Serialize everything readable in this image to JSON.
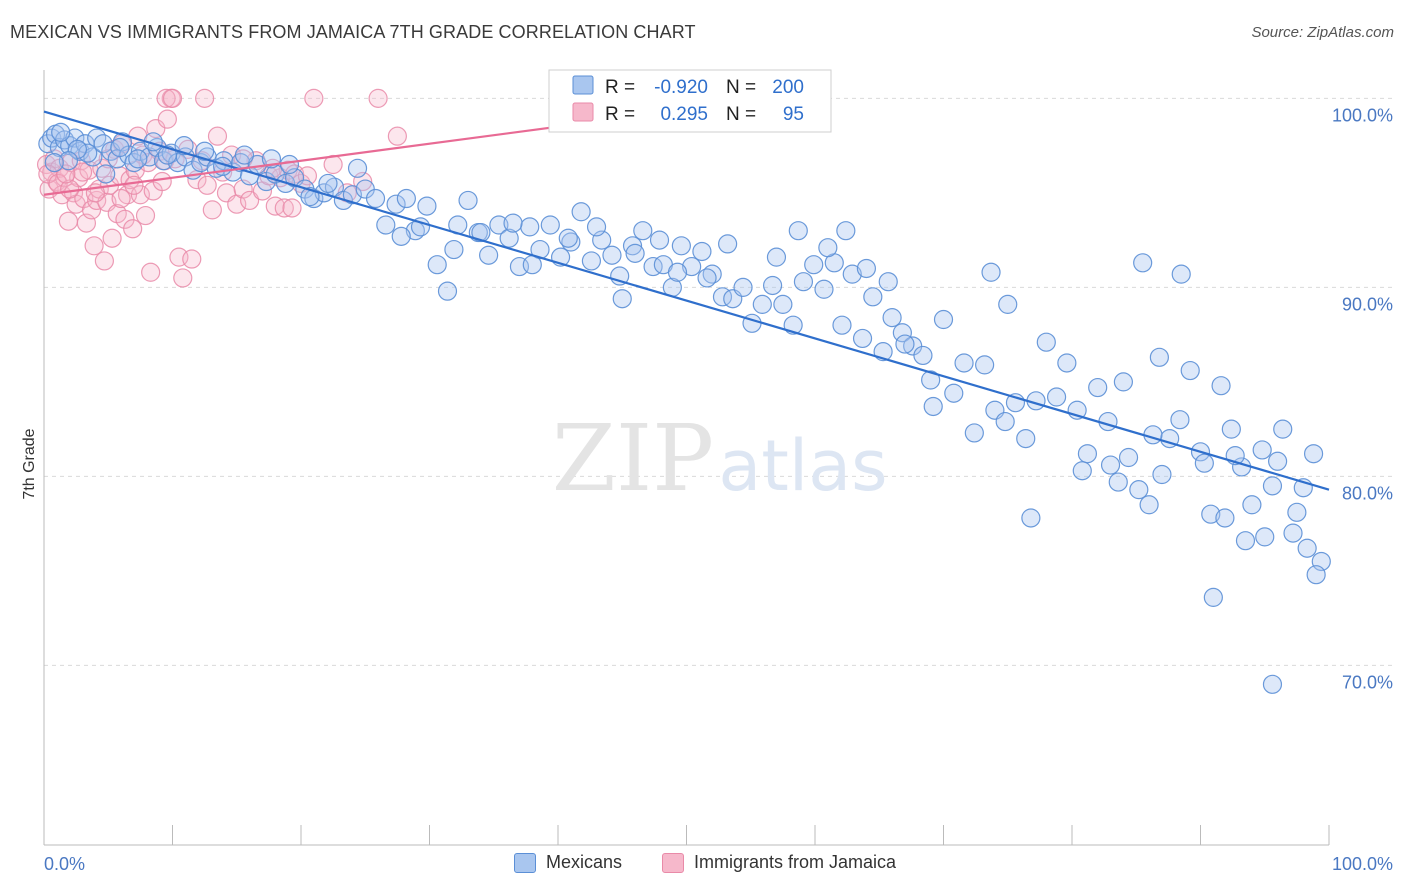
{
  "header": {
    "title": "MEXICAN VS IMMIGRANTS FROM JAMAICA 7TH GRADE CORRELATION CHART",
    "source": "Source: ZipAtlas.com"
  },
  "watermark": {
    "zip": "ZIP",
    "atlas": "atlas"
  },
  "colors": {
    "blue_fill": "#a9c6ef",
    "blue_stroke": "#5b8fd6",
    "blue_line": "#2f6fcc",
    "pink_fill": "#f6b8cb",
    "pink_stroke": "#e98aa8",
    "pink_line": "#e86a94",
    "axis_label": "#4a78c2",
    "grid": "#d9d9d9"
  },
  "legend_box": {
    "rows": [
      {
        "r_label": "R =",
        "r_value": "-0.920",
        "n_label": "N =",
        "n_value": "200"
      },
      {
        "r_label": "R =",
        "r_value": "0.295",
        "n_label": "N =",
        "n_value": "95"
      }
    ]
  },
  "bottom_legend": {
    "items": [
      "Mexicans",
      "Immigrants from Jamaica"
    ]
  },
  "chart_data": {
    "type": "scatter",
    "title": "MEXICAN VS IMMIGRANTS FROM JAMAICA 7TH GRADE CORRELATION CHART",
    "xlabel": "",
    "ylabel": "7th Grade",
    "xlim": [
      0,
      100
    ],
    "ylim": [
      60.5,
      101.5
    ],
    "x_tick_labels": [
      "0.0%",
      "100.0%"
    ],
    "y_ticks": [
      70,
      80,
      90,
      100
    ],
    "y_tick_labels": [
      "70.0%",
      "80.0%",
      "90.0%",
      "100.0%"
    ],
    "grid": "horizontal dashed",
    "legend": "top-center",
    "series": [
      {
        "name": "Mexicans",
        "color": "#5b8fd6",
        "r": -0.92,
        "n": 200,
        "trend": {
          "x": [
            0,
            100
          ],
          "y": [
            99.3,
            79.3
          ]
        },
        "points": [
          [
            0.3,
            97.6
          ],
          [
            0.6,
            97.9
          ],
          [
            0.9,
            98.1
          ],
          [
            1.2,
            97.4
          ],
          [
            1.6,
            97.8
          ],
          [
            2.0,
            97.5
          ],
          [
            2.4,
            97.9
          ],
          [
            2.8,
            97.2
          ],
          [
            3.2,
            97.6
          ],
          [
            3.8,
            96.9
          ],
          [
            4.1,
            97.9
          ],
          [
            4.6,
            97.6
          ],
          [
            5.2,
            97.2
          ],
          [
            5.7,
            96.8
          ],
          [
            6.1,
            97.7
          ],
          [
            6.6,
            97.0
          ],
          [
            7.0,
            96.6
          ],
          [
            7.5,
            97.2
          ],
          [
            8.2,
            96.9
          ],
          [
            8.8,
            97.4
          ],
          [
            9.3,
            96.7
          ],
          [
            9.9,
            97.1
          ],
          [
            10.4,
            96.6
          ],
          [
            11.0,
            96.9
          ],
          [
            11.6,
            96.2
          ],
          [
            12.2,
            96.6
          ],
          [
            12.7,
            96.9
          ],
          [
            13.4,
            96.3
          ],
          [
            14.0,
            96.7
          ],
          [
            14.7,
            96.1
          ],
          [
            15.3,
            96.6
          ],
          [
            16.0,
            95.9
          ],
          [
            16.6,
            96.5
          ],
          [
            17.3,
            95.6
          ],
          [
            18.0,
            96.0
          ],
          [
            18.8,
            95.5
          ],
          [
            19.5,
            95.8
          ],
          [
            20.3,
            95.2
          ],
          [
            21.0,
            94.7
          ],
          [
            21.8,
            95.0
          ],
          [
            22.6,
            95.3
          ],
          [
            23.3,
            94.6
          ],
          [
            24.0,
            94.9
          ],
          [
            25.0,
            95.2
          ],
          [
            25.8,
            94.7
          ],
          [
            26.6,
            93.3
          ],
          [
            27.4,
            94.4
          ],
          [
            28.2,
            94.7
          ],
          [
            28.9,
            93.0
          ],
          [
            29.8,
            94.3
          ],
          [
            30.6,
            91.2
          ],
          [
            31.4,
            89.8
          ],
          [
            32.2,
            93.3
          ],
          [
            33.0,
            94.6
          ],
          [
            33.8,
            92.9
          ],
          [
            34.6,
            91.7
          ],
          [
            35.4,
            93.3
          ],
          [
            36.2,
            92.6
          ],
          [
            37.0,
            91.1
          ],
          [
            37.8,
            93.2
          ],
          [
            38.6,
            92.0
          ],
          [
            39.4,
            93.3
          ],
          [
            40.2,
            91.6
          ],
          [
            41.0,
            92.4
          ],
          [
            41.8,
            94.0
          ],
          [
            42.6,
            91.4
          ],
          [
            43.4,
            92.5
          ],
          [
            44.2,
            91.7
          ],
          [
            45.0,
            89.4
          ],
          [
            45.8,
            92.2
          ],
          [
            46.6,
            93.0
          ],
          [
            47.4,
            91.1
          ],
          [
            48.2,
            91.2
          ],
          [
            48.9,
            90.0
          ],
          [
            49.6,
            92.2
          ],
          [
            50.4,
            91.1
          ],
          [
            51.2,
            91.9
          ],
          [
            52.0,
            90.7
          ],
          [
            52.8,
            89.5
          ],
          [
            53.6,
            89.4
          ],
          [
            54.4,
            90.0
          ],
          [
            55.1,
            88.1
          ],
          [
            55.9,
            89.1
          ],
          [
            56.7,
            90.1
          ],
          [
            57.5,
            89.1
          ],
          [
            58.3,
            88.0
          ],
          [
            59.1,
            90.3
          ],
          [
            59.9,
            91.2
          ],
          [
            60.7,
            89.9
          ],
          [
            61.5,
            91.3
          ],
          [
            62.1,
            88.0
          ],
          [
            62.9,
            90.7
          ],
          [
            63.7,
            87.3
          ],
          [
            64.5,
            89.5
          ],
          [
            65.3,
            86.6
          ],
          [
            66.0,
            88.4
          ],
          [
            66.8,
            87.6
          ],
          [
            67.6,
            86.9
          ],
          [
            68.4,
            86.4
          ],
          [
            69.2,
            83.7
          ],
          [
            70.0,
            88.3
          ],
          [
            70.8,
            84.4
          ],
          [
            71.6,
            86.0
          ],
          [
            72.4,
            82.3
          ],
          [
            73.2,
            85.9
          ],
          [
            74.0,
            83.5
          ],
          [
            74.8,
            82.9
          ],
          [
            75.6,
            83.9
          ],
          [
            76.4,
            82.0
          ],
          [
            77.2,
            84.0
          ],
          [
            78.0,
            87.1
          ],
          [
            78.8,
            84.2
          ],
          [
            79.6,
            86.0
          ],
          [
            80.4,
            83.5
          ],
          [
            81.2,
            81.2
          ],
          [
            82.0,
            84.7
          ],
          [
            82.8,
            82.9
          ],
          [
            83.6,
            79.7
          ],
          [
            84.4,
            81.0
          ],
          [
            85.2,
            79.3
          ],
          [
            86.0,
            78.5
          ],
          [
            86.8,
            86.3
          ],
          [
            87.6,
            82.0
          ],
          [
            88.4,
            83.0
          ],
          [
            89.2,
            85.6
          ],
          [
            90.0,
            81.3
          ],
          [
            90.8,
            78.0
          ],
          [
            91.6,
            84.8
          ],
          [
            92.4,
            82.5
          ],
          [
            93.2,
            80.5
          ],
          [
            94.0,
            78.5
          ],
          [
            94.8,
            81.4
          ],
          [
            95.6,
            79.5
          ],
          [
            96.4,
            82.5
          ],
          [
            97.2,
            77.0
          ],
          [
            98.0,
            79.4
          ],
          [
            98.8,
            81.2
          ],
          [
            99.4,
            75.5
          ],
          [
            83.0,
            80.6
          ],
          [
            80.8,
            80.3
          ],
          [
            76.8,
            77.8
          ],
          [
            75.0,
            89.1
          ],
          [
            73.7,
            90.8
          ],
          [
            69.0,
            85.1
          ],
          [
            67.0,
            87.0
          ],
          [
            65.7,
            90.3
          ],
          [
            64.0,
            91.0
          ],
          [
            62.4,
            93.0
          ],
          [
            61.0,
            92.1
          ],
          [
            58.7,
            93.0
          ],
          [
            57.0,
            91.6
          ],
          [
            53.2,
            92.3
          ],
          [
            51.6,
            90.5
          ],
          [
            49.3,
            90.8
          ],
          [
            47.9,
            92.5
          ],
          [
            46.0,
            91.8
          ],
          [
            44.8,
            90.6
          ],
          [
            43.0,
            93.2
          ],
          [
            40.8,
            92.6
          ],
          [
            38.0,
            91.2
          ],
          [
            36.5,
            93.4
          ],
          [
            34.0,
            92.9
          ],
          [
            31.9,
            92.0
          ],
          [
            29.3,
            93.2
          ],
          [
            27.8,
            92.7
          ],
          [
            24.4,
            96.3
          ],
          [
            22.1,
            95.5
          ],
          [
            20.7,
            94.8
          ],
          [
            19.1,
            96.5
          ],
          [
            17.7,
            96.8
          ],
          [
            15.6,
            97.0
          ],
          [
            13.9,
            96.4
          ],
          [
            12.5,
            97.2
          ],
          [
            10.9,
            97.5
          ],
          [
            9.6,
            97.0
          ],
          [
            8.5,
            97.7
          ],
          [
            7.3,
            96.8
          ],
          [
            5.9,
            97.4
          ],
          [
            4.8,
            96.0
          ],
          [
            3.4,
            97.1
          ],
          [
            2.6,
            97.3
          ],
          [
            1.9,
            96.7
          ],
          [
            1.3,
            98.2
          ],
          [
            0.8,
            96.6
          ],
          [
            85.5,
            91.3
          ],
          [
            86.3,
            82.2
          ],
          [
            88.5,
            90.7
          ],
          [
            90.3,
            80.7
          ],
          [
            91.9,
            77.8
          ],
          [
            92.7,
            81.1
          ],
          [
            93.5,
            76.6
          ],
          [
            95.0,
            76.8
          ],
          [
            96.0,
            80.8
          ],
          [
            97.5,
            78.1
          ],
          [
            98.3,
            76.2
          ],
          [
            99.0,
            74.8
          ],
          [
            91.0,
            73.6
          ],
          [
            95.6,
            69.0
          ],
          [
            84.0,
            85.0
          ],
          [
            87.0,
            80.1
          ]
        ]
      },
      {
        "name": "Immigrants from Jamaica",
        "color": "#e98aa8",
        "r": 0.295,
        "n": 95,
        "trend": {
          "x": [
            0,
            50
          ],
          "y": [
            94.9,
            99.4
          ]
        },
        "points": [
          [
            0.2,
            96.5
          ],
          [
            0.4,
            95.2
          ],
          [
            0.6,
            96.1
          ],
          [
            0.8,
            96.8
          ],
          [
            1.0,
            95.6
          ],
          [
            1.2,
            96.3
          ],
          [
            1.4,
            94.9
          ],
          [
            1.6,
            95.8
          ],
          [
            1.9,
            93.5
          ],
          [
            2.1,
            96.6
          ],
          [
            2.3,
            95.0
          ],
          [
            2.5,
            94.4
          ],
          [
            2.7,
            95.8
          ],
          [
            2.9,
            96.7
          ],
          [
            3.1,
            94.7
          ],
          [
            3.3,
            93.4
          ],
          [
            3.5,
            96.2
          ],
          [
            3.7,
            94.1
          ],
          [
            3.9,
            92.2
          ],
          [
            4.1,
            94.6
          ],
          [
            4.3,
            95.2
          ],
          [
            4.5,
            96.3
          ],
          [
            4.7,
            91.4
          ],
          [
            4.9,
            94.5
          ],
          [
            5.1,
            95.4
          ],
          [
            5.3,
            92.6
          ],
          [
            5.5,
            97.3
          ],
          [
            5.7,
            93.9
          ],
          [
            5.9,
            95.9
          ],
          [
            6.1,
            97.6
          ],
          [
            6.3,
            93.6
          ],
          [
            6.5,
            94.9
          ],
          [
            6.7,
            95.7
          ],
          [
            6.9,
            93.1
          ],
          [
            7.1,
            96.2
          ],
          [
            7.3,
            98.0
          ],
          [
            7.5,
            94.9
          ],
          [
            7.7,
            97.0
          ],
          [
            7.9,
            93.8
          ],
          [
            8.1,
            96.6
          ],
          [
            8.3,
            90.8
          ],
          [
            8.5,
            95.1
          ],
          [
            8.7,
            98.4
          ],
          [
            9.0,
            97.2
          ],
          [
            9.2,
            95.6
          ],
          [
            9.4,
            96.7
          ],
          [
            9.6,
            98.9
          ],
          [
            9.9,
            100.0
          ],
          [
            10.2,
            96.8
          ],
          [
            10.5,
            91.6
          ],
          [
            10.8,
            90.5
          ],
          [
            11.2,
            97.3
          ],
          [
            11.5,
            91.5
          ],
          [
            11.9,
            95.7
          ],
          [
            12.3,
            96.7
          ],
          [
            12.7,
            95.4
          ],
          [
            13.1,
            94.1
          ],
          [
            13.5,
            98.0
          ],
          [
            13.9,
            96.1
          ],
          [
            14.2,
            95.0
          ],
          [
            14.6,
            97.0
          ],
          [
            15.0,
            94.4
          ],
          [
            15.5,
            95.2
          ],
          [
            16.0,
            94.6
          ],
          [
            16.5,
            96.7
          ],
          [
            17.0,
            95.1
          ],
          [
            17.5,
            95.9
          ],
          [
            18.0,
            94.3
          ],
          [
            18.4,
            95.8
          ],
          [
            19.0,
            96.2
          ],
          [
            19.5,
            96.0
          ],
          [
            20.0,
            95.5
          ],
          [
            21.0,
            100.0
          ],
          [
            26.0,
            100.0
          ],
          [
            27.5,
            98.0
          ],
          [
            22.5,
            96.5
          ],
          [
            23.6,
            95.0
          ],
          [
            24.8,
            95.6
          ],
          [
            7.0,
            95.4
          ],
          [
            6.0,
            94.7
          ],
          [
            0.3,
            96.0
          ],
          [
            1.1,
            95.5
          ],
          [
            2.0,
            95.2
          ],
          [
            3.0,
            96.1
          ],
          [
            4.0,
            95.0
          ],
          [
            5.0,
            96.8
          ],
          [
            9.5,
            100.0
          ],
          [
            10.0,
            100.0
          ],
          [
            12.5,
            100.0
          ],
          [
            15.5,
            96.8
          ],
          [
            18.7,
            94.2
          ],
          [
            19.3,
            94.2
          ],
          [
            17.8,
            96.3
          ],
          [
            20.5,
            95.9
          ],
          [
            1.7,
            96.0
          ]
        ]
      }
    ]
  }
}
